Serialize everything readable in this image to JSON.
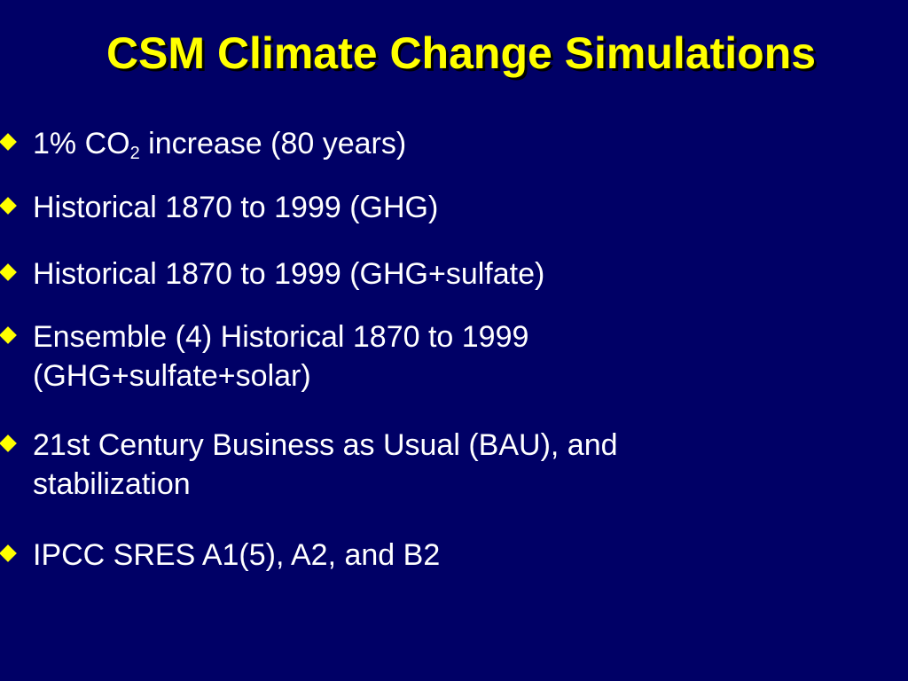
{
  "slide": {
    "title": "CSM Climate Change Simulations",
    "bullets": [
      {
        "prefix": "1% CO",
        "sub": "2",
        "suffix": " increase (80 years)"
      },
      {
        "text": "Historical 1870 to 1999 (GHG)"
      },
      {
        "text": "Historical 1870 to 1999 (GHG+sulfate)"
      },
      {
        "line1": "Ensemble (4) Historical 1870 to 1999",
        "line2": "(GHG+sulfate+solar)"
      },
      {
        "line1": "21st Century Business as Usual (BAU), and",
        "line2": "stabilization"
      },
      {
        "text": "IPCC SRES A1(5), A2, and B2"
      }
    ]
  },
  "colors": {
    "background": "#000066",
    "title": "#ffff00",
    "bullet_marker": "#ffff00",
    "body_text": "#ffffff"
  },
  "icons": {
    "bullet_marker": "diamond-bullet-icon"
  }
}
